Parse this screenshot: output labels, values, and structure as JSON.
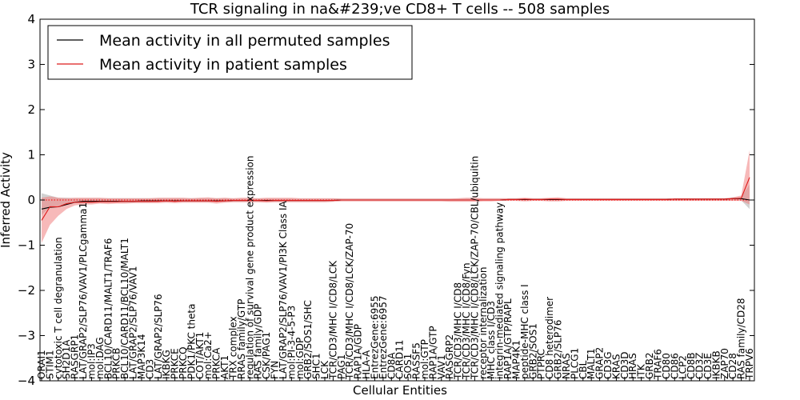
{
  "chart_data": {
    "type": "line",
    "title": "TCR signaling in na&#239;ve CD8+ T cells -- 508 samples",
    "xlabel": "Cellular Entities",
    "ylabel": "Inferred Activity",
    "ylim": [
      -4,
      4
    ],
    "yticks": [
      -4,
      -3,
      -2,
      -1,
      0,
      1,
      2,
      3,
      4
    ],
    "grid": false,
    "legend_position": "top-left",
    "reference_line": 0,
    "colors": {
      "permuted": "#000000",
      "patient": "#dd1c1c",
      "permuted_band": "#a6a6a6",
      "patient_band": "#f08080",
      "reference": "#ff0000"
    },
    "categories": [
      "ORAI1",
      "STIM1",
      "cytotoxic T cell degranulation",
      "SH2D1A",
      "RASGRP1",
      "LAT/GRAP2/SLP76/VAV1/PLCgamma1",
      "mol:IP3",
      "mol:DAG",
      "BCL10/CARD11/MALT1/TRAF6",
      "PRKCB",
      "BCL10/CARD11/BCL10/MALT1",
      "LAT/GRAP2/SLP76/VAV1",
      "MAP3K14",
      "CD3",
      "LAT/GRAP2/SLP76",
      "IKBKG",
      "PRKCE",
      "PRKCQ",
      "PDK1/PKC theta",
      "COT/AKT1",
      "mol:Ca2+",
      "PRKCA",
      "AKT1",
      "TRX complex",
      "RRAS family/GTP",
      "regulation of survival gene product expression",
      "RAS family/GDP",
      "CSK/PAG1",
      "FYN",
      "LAT/GRAP2/SLP76/VAV1/PI3K Class IA",
      "mol:PI-3-4-5-P3",
      "mol:GDP",
      "GRB2/SOS1/SHC",
      "SHC1",
      "LCK",
      "TCR/CD3/MHC I/CD8/LCK",
      "PAG1",
      "TCR/CD3/MHC I/CD8/LCK/ZAP-70",
      "RAP1A/GDP",
      "HLA-A",
      "EntrezGene:6955",
      "EntrezGene:6957",
      "CD8A",
      "CARD11",
      "SOS1",
      "RASSF5",
      "mol:GTP",
      "RAP1A/GTP",
      "VAV1",
      "RASGRP2",
      "TCR/CD3/MHC I/CD8",
      "TCR/CD3/MHC I/CD8/Fyn",
      "TCR/CD3/MHC I/CD8/LCK/ZAP-70/CBL/ubiquitin",
      "receptor internalization",
      "MHC class I/CD3",
      "integrin-mediated signaling pathway",
      "RAP1A/GTP/RAPL",
      "MAP4K1",
      "peptide-MHC class I",
      "GRB2/SOS1",
      "PTPRC",
      "CD8 heterodimer",
      "GRB2/SLP76",
      "NRAS",
      "PLCG1",
      "CBL",
      "MALT1",
      "GRAP2",
      "CD3G",
      "KRAS",
      "CD3D",
      "HRAS",
      "ITK",
      "GRB2",
      "TRAF6",
      "CD80",
      "CD86",
      "LCP2",
      "CD8B",
      "CD3Z",
      "CD3E",
      "IKBKB",
      "ZAP70",
      "CD28",
      "RAS family/CD28",
      "TRPV6"
    ],
    "series": [
      {
        "name": "Mean activity in all permuted samples",
        "values": [
          -0.2,
          -0.16,
          -0.15,
          -0.1,
          -0.05,
          -0.03,
          -0.03,
          -0.03,
          -0.03,
          -0.03,
          -0.03,
          -0.03,
          -0.02,
          -0.02,
          -0.02,
          -0.02,
          -0.02,
          -0.02,
          -0.02,
          -0.02,
          -0.02,
          -0.02,
          -0.02,
          -0.01,
          -0.01,
          -0.01,
          -0.01,
          -0.01,
          -0.01,
          -0.01,
          -0.01,
          -0.01,
          -0.01,
          -0.01,
          -0.01,
          -0.01,
          0.0,
          0.0,
          0.0,
          0.0,
          0.0,
          0.0,
          0.0,
          0.0,
          0.0,
          0.0,
          0.0,
          0.0,
          0.0,
          0.0,
          0.0,
          0.0,
          0.0,
          0.0,
          0.0,
          0.0,
          0.01,
          0.01,
          0.01,
          0.01,
          0.01,
          0.01,
          0.01,
          0.01,
          0.01,
          0.01,
          0.01,
          0.01,
          0.01,
          0.01,
          0.01,
          0.01,
          0.01,
          0.01,
          0.01,
          0.01,
          0.02,
          0.02,
          0.02,
          0.02,
          0.02,
          0.02,
          0.02,
          0.03,
          0.03,
          0.0
        ]
      },
      {
        "name": "Mean activity in patient samples",
        "values": [
          -0.45,
          -0.15,
          -0.15,
          -0.08,
          -0.05,
          -0.05,
          -0.05,
          -0.04,
          -0.04,
          -0.04,
          -0.03,
          -0.03,
          -0.03,
          -0.03,
          -0.03,
          -0.02,
          -0.03,
          -0.02,
          -0.02,
          -0.02,
          -0.02,
          -0.03,
          -0.02,
          -0.01,
          -0.01,
          -0.01,
          -0.01,
          -0.02,
          -0.01,
          -0.01,
          -0.01,
          -0.01,
          -0.01,
          -0.01,
          -0.01,
          -0.01,
          0.0,
          0.0,
          0.0,
          0.0,
          0.0,
          0.0,
          0.0,
          0.0,
          0.0,
          0.0,
          0.0,
          0.0,
          0.0,
          0.0,
          0.0,
          0.0,
          0.0,
          0.0,
          0.0,
          0.0,
          0.01,
          0.01,
          0.02,
          0.01,
          0.01,
          0.02,
          0.02,
          0.01,
          0.01,
          0.01,
          0.01,
          0.01,
          0.01,
          0.01,
          0.01,
          0.01,
          0.01,
          0.01,
          0.01,
          0.01,
          0.02,
          0.02,
          0.02,
          0.02,
          0.02,
          0.02,
          0.02,
          0.03,
          0.04,
          0.5
        ]
      }
    ],
    "bands": [
      {
        "name": "permuted spread",
        "lower": [
          -0.33,
          -0.16,
          -0.12,
          -0.08,
          -0.06,
          -0.06,
          -0.06,
          -0.06,
          -0.05,
          -0.05,
          -0.05,
          -0.05,
          -0.05,
          -0.05,
          -0.04,
          -0.04,
          -0.04,
          -0.04,
          -0.04,
          -0.04,
          -0.04,
          -0.04,
          -0.04,
          -0.03,
          -0.03,
          -0.03,
          -0.03,
          -0.03,
          -0.03,
          -0.03,
          -0.03,
          -0.03,
          -0.03,
          -0.03,
          -0.03,
          -0.02,
          -0.02,
          -0.02,
          -0.02,
          -0.02,
          -0.02,
          -0.02,
          -0.02,
          -0.02,
          -0.02,
          -0.02,
          -0.02,
          -0.02,
          -0.02,
          -0.02,
          -0.02,
          -0.02,
          -0.02,
          -0.01,
          -0.01,
          -0.01,
          -0.01,
          -0.01,
          -0.01,
          -0.01,
          -0.01,
          -0.01,
          -0.01,
          -0.01,
          -0.01,
          -0.01,
          -0.01,
          -0.01,
          -0.01,
          -0.01,
          -0.01,
          -0.01,
          -0.01,
          -0.01,
          -0.01,
          -0.01,
          -0.01,
          -0.01,
          -0.01,
          -0.01,
          -0.01,
          -0.01,
          -0.01,
          -0.01,
          -0.01,
          -0.2
        ],
        "upper": [
          0.15,
          0.1,
          0.05,
          0.05,
          0.04,
          0.04,
          0.04,
          0.04,
          0.04,
          0.04,
          0.04,
          0.04,
          0.04,
          0.04,
          0.04,
          0.04,
          0.04,
          0.04,
          0.04,
          0.04,
          0.04,
          0.04,
          0.04,
          0.03,
          0.03,
          0.03,
          0.03,
          0.03,
          0.03,
          0.03,
          0.03,
          0.03,
          0.03,
          0.03,
          0.03,
          0.03,
          0.03,
          0.03,
          0.03,
          0.03,
          0.03,
          0.03,
          0.03,
          0.03,
          0.03,
          0.03,
          0.03,
          0.03,
          0.03,
          0.03,
          0.03,
          0.03,
          0.03,
          0.03,
          0.03,
          0.03,
          0.03,
          0.03,
          0.03,
          0.03,
          0.03,
          0.03,
          0.03,
          0.03,
          0.03,
          0.03,
          0.03,
          0.03,
          0.03,
          0.03,
          0.03,
          0.03,
          0.03,
          0.03,
          0.03,
          0.03,
          0.03,
          0.03,
          0.03,
          0.03,
          0.03,
          0.03,
          0.03,
          0.05,
          0.06,
          0.35
        ]
      },
      {
        "name": "patient spread",
        "lower": [
          -0.95,
          -0.55,
          -0.35,
          -0.2,
          -0.12,
          -0.1,
          -0.1,
          -0.08,
          -0.09,
          -0.08,
          -0.08,
          -0.07,
          -0.07,
          -0.07,
          -0.07,
          -0.06,
          -0.07,
          -0.06,
          -0.06,
          -0.06,
          -0.06,
          -0.08,
          -0.06,
          -0.05,
          -0.05,
          -0.05,
          -0.05,
          -0.06,
          -0.05,
          -0.05,
          -0.05,
          -0.05,
          -0.05,
          -0.05,
          -0.05,
          -0.04,
          -0.03,
          -0.03,
          -0.03,
          -0.03,
          -0.03,
          -0.03,
          -0.03,
          -0.03,
          -0.03,
          -0.03,
          -0.03,
          -0.03,
          -0.03,
          -0.04,
          -0.04,
          -0.04,
          -0.04,
          -0.03,
          -0.03,
          -0.02,
          -0.02,
          -0.02,
          -0.03,
          -0.02,
          -0.02,
          -0.03,
          -0.03,
          -0.02,
          -0.02,
          -0.02,
          -0.02,
          -0.02,
          -0.02,
          -0.02,
          -0.02,
          -0.02,
          -0.02,
          -0.02,
          -0.02,
          -0.02,
          -0.02,
          -0.02,
          -0.02,
          -0.02,
          -0.02,
          -0.02,
          -0.02,
          -0.02,
          -0.02,
          -0.1
        ],
        "upper": [
          0.05,
          0.08,
          0.05,
          0.04,
          0.05,
          0.05,
          0.05,
          0.05,
          0.04,
          0.04,
          0.04,
          0.04,
          0.04,
          0.04,
          0.05,
          0.05,
          0.05,
          0.05,
          0.04,
          0.05,
          0.06,
          0.04,
          0.05,
          0.04,
          0.05,
          0.05,
          0.04,
          0.05,
          0.05,
          0.05,
          0.05,
          0.04,
          0.04,
          0.04,
          0.04,
          0.04,
          0.03,
          0.03,
          0.03,
          0.03,
          0.03,
          0.03,
          0.03,
          0.03,
          0.03,
          0.03,
          0.03,
          0.03,
          0.03,
          0.03,
          0.04,
          0.05,
          0.05,
          0.04,
          0.04,
          0.04,
          0.04,
          0.04,
          0.05,
          0.04,
          0.04,
          0.05,
          0.06,
          0.04,
          0.04,
          0.04,
          0.04,
          0.04,
          0.04,
          0.04,
          0.04,
          0.04,
          0.04,
          0.04,
          0.04,
          0.04,
          0.04,
          0.04,
          0.04,
          0.04,
          0.04,
          0.04,
          0.04,
          0.06,
          0.1,
          1.1
        ]
      }
    ]
  }
}
